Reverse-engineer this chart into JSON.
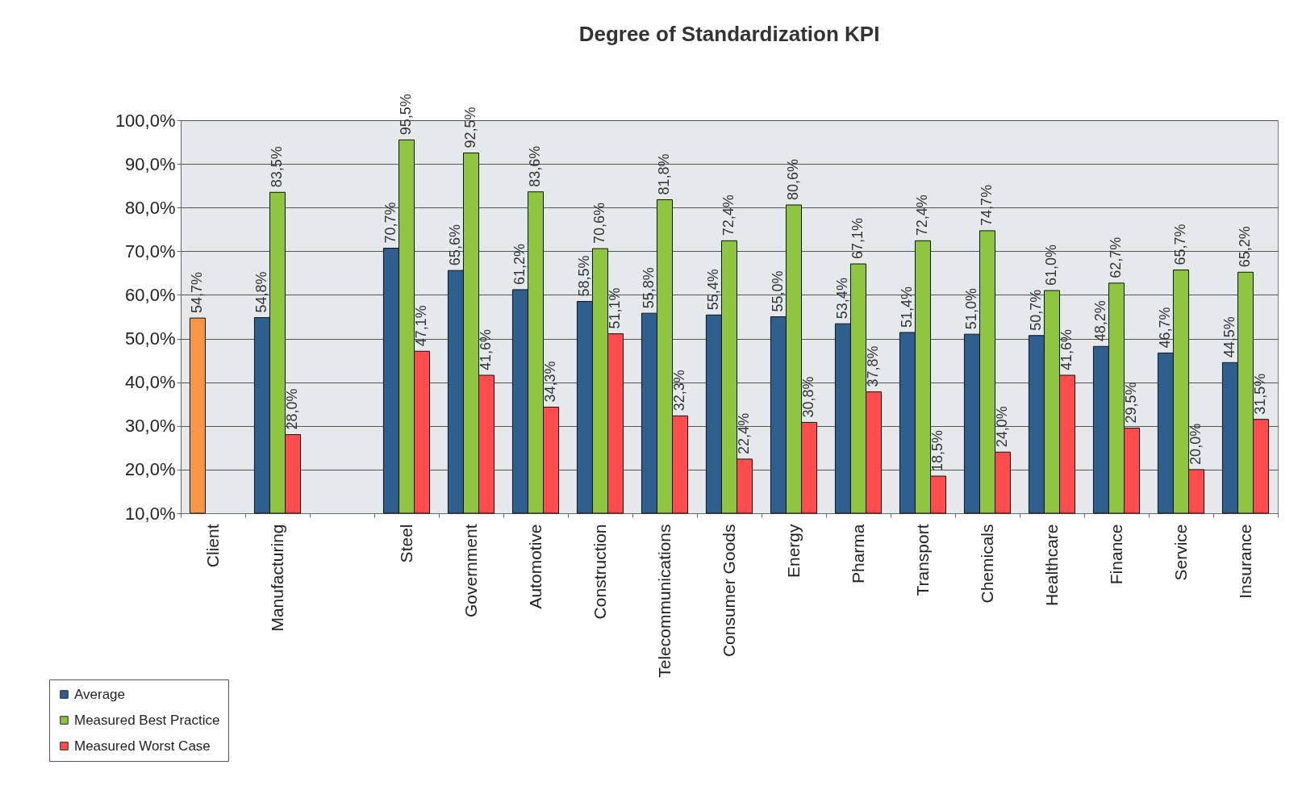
{
  "chart_data": {
    "type": "bar",
    "title": "Degree of Standardization KPI",
    "categories": [
      "Client",
      "Manufacturing",
      null,
      "Steel",
      "Government",
      "Automotive",
      "Construction",
      "Telecommunications",
      "Consumer Goods",
      "Energy",
      "Pharma",
      "Transport",
      "Chemicals",
      "Healthcare",
      "Finance",
      "Service",
      "Insurance"
    ],
    "series": [
      {
        "name": "Average",
        "color": "#2f5f8f",
        "colors": [
          "#f79646",
          "#2f5f8f",
          null,
          "#2f5f8f",
          "#2f5f8f",
          "#2f5f8f",
          "#2f5f8f",
          "#2f5f8f",
          "#2f5f8f",
          "#2f5f8f",
          "#2f5f8f",
          "#2f5f8f",
          "#2f5f8f",
          "#2f5f8f",
          "#2f5f8f",
          "#2f5f8f",
          "#2f5f8f"
        ],
        "values": [
          54.7,
          54.8,
          null,
          70.7,
          65.6,
          61.2,
          58.5,
          55.8,
          55.4,
          55.0,
          53.4,
          51.4,
          51.0,
          50.7,
          48.2,
          46.7,
          44.5
        ],
        "value_labels": [
          "54,7%",
          "54,8%",
          null,
          "70,7%",
          "65,6%",
          "61,2%",
          "58,5%",
          "55,8%",
          "55,4%",
          "55,0%",
          "53,4%",
          "51,4%",
          "51,0%",
          "50,7%",
          "48,2%",
          "46,7%",
          "44,5%"
        ]
      },
      {
        "name": "Measured Best Practice",
        "color": "#8cc63f",
        "values": [
          null,
          83.5,
          null,
          95.5,
          92.5,
          83.6,
          70.6,
          81.8,
          72.4,
          80.6,
          67.1,
          72.4,
          74.7,
          61.0,
          62.7,
          65.7,
          65.2
        ],
        "value_labels": [
          null,
          "83,5%",
          null,
          "95,5%",
          "92,5%",
          "83,6%",
          "70,6%",
          "81,8%",
          "72,4%",
          "80,6%",
          "67,1%",
          "72,4%",
          "74,7%",
          "61,0%",
          "62,7%",
          "65,7%",
          "65,2%"
        ]
      },
      {
        "name": "Measured Worst Case",
        "color": "#ff4d4d",
        "values": [
          null,
          28.0,
          null,
          47.1,
          41.6,
          34.3,
          51.1,
          32.3,
          22.4,
          30.8,
          37.8,
          18.5,
          24.0,
          41.6,
          29.5,
          20.0,
          31.5
        ],
        "value_labels": [
          null,
          "28,0%",
          null,
          "47,1%",
          "41,6%",
          "34,3%",
          "51,1%",
          "32,3%",
          "22,4%",
          "30,8%",
          "37,8%",
          "18,5%",
          "24,0%",
          "41,6%",
          "29,5%",
          "20,0%",
          "31,5%"
        ]
      }
    ],
    "ylim": [
      10,
      100
    ],
    "yticks": [
      {
        "value": 10,
        "label": "10,0%"
      },
      {
        "value": 20,
        "label": "20,0%"
      },
      {
        "value": 30,
        "label": "30,0%"
      },
      {
        "value": 40,
        "label": "40,0%"
      },
      {
        "value": 50,
        "label": "50,0%"
      },
      {
        "value": 60,
        "label": "60,0%"
      },
      {
        "value": 70,
        "label": "70,0%"
      },
      {
        "value": 80,
        "label": "80,0%"
      },
      {
        "value": 90,
        "label": "90,0%"
      },
      {
        "value": 100,
        "label": "100,0%"
      }
    ],
    "grid": "y",
    "legend": "bottom left"
  }
}
